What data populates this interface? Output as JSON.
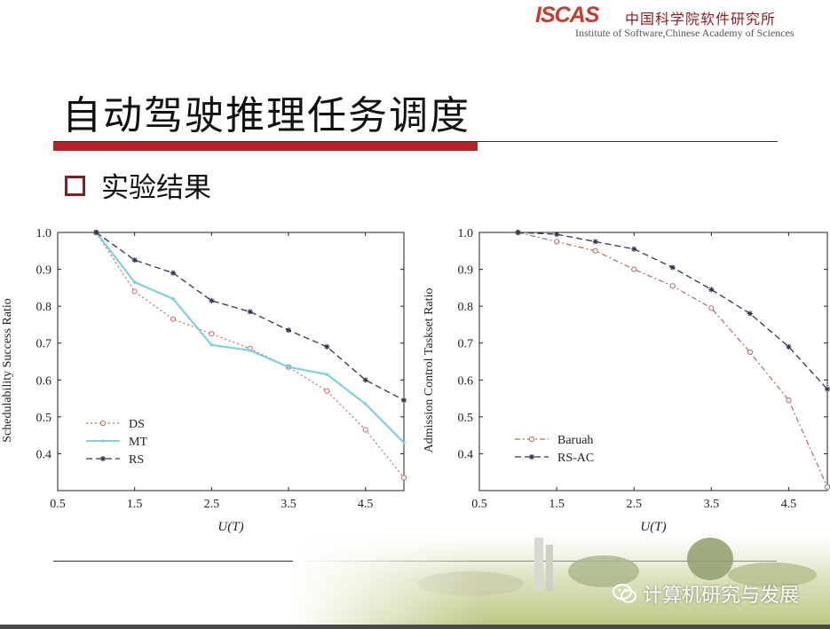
{
  "header": {
    "logo_text": "ISCAS",
    "logo_cn": "中国科学院软件研究所",
    "institute_en": "Institute of Software,Chinese Academy of Sciences"
  },
  "slide": {
    "title": "自动驾驶推理任务调度",
    "bullet": "实验结果"
  },
  "watermark": {
    "text": "计算机研究与发展"
  },
  "colors": {
    "title_rule": "#b5222a",
    "bullet_box": "#8b1a1a",
    "ds": "#c06b5a",
    "mt": "#80cfe0",
    "rs": "#2e3550",
    "baruah": "#b26a60",
    "rsac": "#2e3550"
  },
  "chart_data": [
    {
      "type": "line",
      "xlabel": "U(T)",
      "ylabel": "Schedulability Success Ratio",
      "xlim": [
        0.5,
        5.0
      ],
      "ylim": [
        0.3,
        1.0
      ],
      "xticks": [
        "0.5",
        "1.5",
        "2.5",
        "3.5",
        "4.5"
      ],
      "yticks": [
        "0.4",
        "0.5",
        "0.6",
        "0.7",
        "0.8",
        "0.9",
        "1.0"
      ],
      "legend_position": "bottom-left",
      "x": [
        1.0,
        1.5,
        2.0,
        2.5,
        3.0,
        3.5,
        4.0,
        4.5,
        5.0
      ],
      "series": [
        {
          "name": "DS",
          "values": [
            1.0,
            0.84,
            0.765,
            0.725,
            0.685,
            0.635,
            0.57,
            0.465,
            0.335
          ]
        },
        {
          "name": "MT",
          "values": [
            1.0,
            0.865,
            0.82,
            0.695,
            0.68,
            0.635,
            0.615,
            0.535,
            0.43
          ]
        },
        {
          "name": "RS",
          "values": [
            1.0,
            0.925,
            0.89,
            0.815,
            0.785,
            0.735,
            0.69,
            0.6,
            0.545
          ]
        }
      ]
    },
    {
      "type": "line",
      "xlabel": "U(T)",
      "ylabel": "Admission Control Taskset Ratio",
      "xlim": [
        0.5,
        5.0
      ],
      "ylim": [
        0.3,
        1.0
      ],
      "xticks": [
        "0.5",
        "1.5",
        "2.5",
        "3.5",
        "4.5"
      ],
      "yticks": [
        "0.4",
        "0.5",
        "0.6",
        "0.7",
        "0.8",
        "0.9",
        "1.0"
      ],
      "legend_position": "bottom-left",
      "x": [
        1.0,
        1.5,
        2.0,
        2.5,
        3.0,
        3.5,
        4.0,
        4.5,
        5.0
      ],
      "series": [
        {
          "name": "Baruah",
          "values": [
            1.0,
            0.975,
            0.95,
            0.9,
            0.855,
            0.795,
            0.675,
            0.545,
            0.31
          ]
        },
        {
          "name": "RS-AC",
          "values": [
            1.0,
            0.995,
            0.975,
            0.955,
            0.905,
            0.845,
            0.78,
            0.69,
            0.575
          ]
        }
      ]
    }
  ]
}
